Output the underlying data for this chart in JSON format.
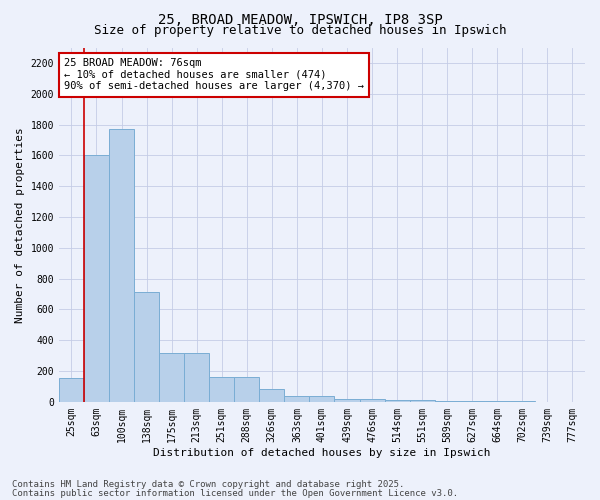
{
  "title_line1": "25, BROAD MEADOW, IPSWICH, IP8 3SP",
  "title_line2": "Size of property relative to detached houses in Ipswich",
  "xlabel": "Distribution of detached houses by size in Ipswich",
  "ylabel": "Number of detached properties",
  "categories": [
    "25sqm",
    "63sqm",
    "100sqm",
    "138sqm",
    "175sqm",
    "213sqm",
    "251sqm",
    "288sqm",
    "326sqm",
    "363sqm",
    "401sqm",
    "439sqm",
    "476sqm",
    "514sqm",
    "551sqm",
    "589sqm",
    "627sqm",
    "664sqm",
    "702sqm",
    "739sqm",
    "777sqm"
  ],
  "values": [
    155,
    1600,
    1770,
    710,
    315,
    315,
    160,
    160,
    85,
    35,
    35,
    20,
    20,
    10,
    10,
    5,
    5,
    3,
    3,
    2,
    2
  ],
  "bar_color": "#b8d0ea",
  "bar_edge_color": "#7aadd4",
  "vline_x_idx": 1,
  "vline_color": "#cc0000",
  "annotation_text": "25 BROAD MEADOW: 76sqm\n← 10% of detached houses are smaller (474)\n90% of semi-detached houses are larger (4,370) →",
  "annotation_box_facecolor": "#ffffff",
  "annotation_box_edgecolor": "#cc0000",
  "ylim": [
    0,
    2300
  ],
  "yticks": [
    0,
    200,
    400,
    600,
    800,
    1000,
    1200,
    1400,
    1600,
    1800,
    2000,
    2200
  ],
  "background_color": "#edf1fb",
  "grid_color": "#c5cce6",
  "footer_line1": "Contains HM Land Registry data © Crown copyright and database right 2025.",
  "footer_line2": "Contains public sector information licensed under the Open Government Licence v3.0.",
  "title_fontsize": 10,
  "subtitle_fontsize": 9,
  "axis_label_fontsize": 8,
  "tick_fontsize": 7,
  "footer_fontsize": 6.5,
  "annotation_fontsize": 7.5
}
